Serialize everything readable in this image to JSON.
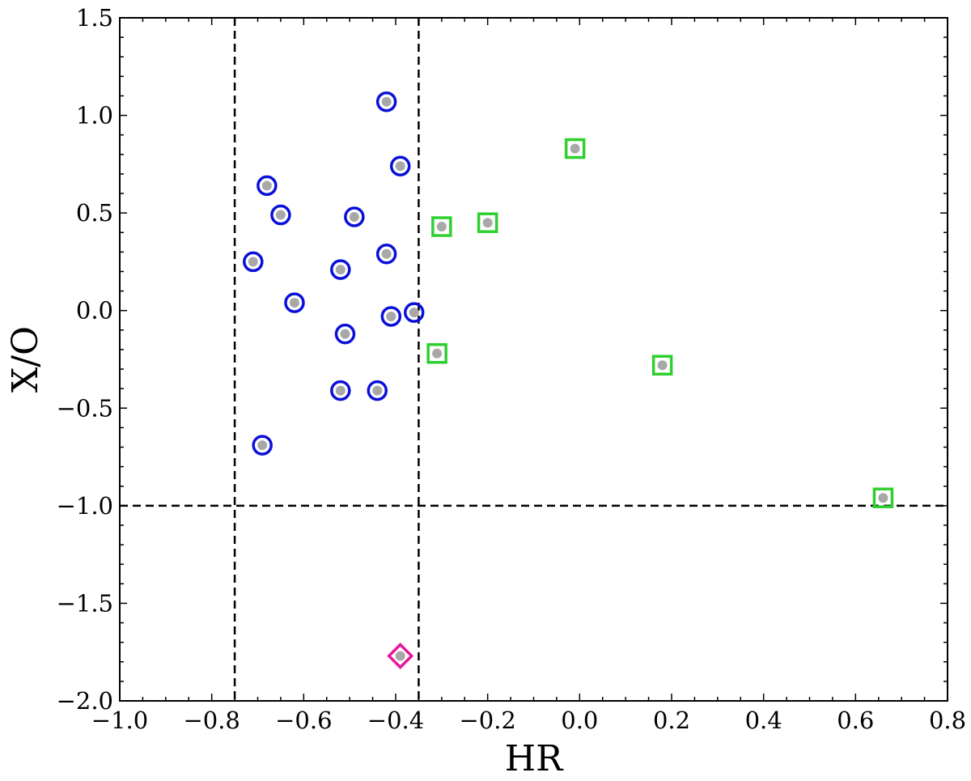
{
  "chart_data": {
    "type": "scatter",
    "title": "",
    "xlabel": "HR",
    "ylabel": "X/O",
    "xlim": [
      -1.0,
      0.8
    ],
    "ylim": [
      -2.0,
      1.5
    ],
    "xticks": [
      -1.0,
      -0.8,
      -0.6,
      -0.4,
      -0.2,
      0.0,
      0.2,
      0.4,
      0.6,
      0.8
    ],
    "yticks": [
      -2.0,
      -1.5,
      -1.0,
      -0.5,
      0.0,
      0.5,
      1.0,
      1.5
    ],
    "xtick_labels": [
      "−1.0",
      "−0.8",
      "−0.6",
      "−0.4",
      "−0.2",
      "0.0",
      "0.2",
      "0.4",
      "0.6",
      "0.8"
    ],
    "ytick_labels": [
      "−2.0",
      "−1.5",
      "−1.0",
      "−0.5",
      "0.0",
      "0.5",
      "1.0",
      "1.5"
    ],
    "grid": false,
    "reference_lines": [
      {
        "orientation": "vertical",
        "value": -0.75,
        "style": "dashed"
      },
      {
        "orientation": "vertical",
        "value": -0.35,
        "style": "dashed"
      },
      {
        "orientation": "horizontal",
        "value": -1.0,
        "style": "dashed"
      }
    ],
    "series": [
      {
        "marker": "circle",
        "color": "#0a10d8",
        "points": [
          {
            "x": -0.42,
            "y": 1.07
          },
          {
            "x": -0.39,
            "y": 0.74
          },
          {
            "x": -0.68,
            "y": 0.64
          },
          {
            "x": -0.65,
            "y": 0.49
          },
          {
            "x": -0.49,
            "y": 0.48
          },
          {
            "x": -0.42,
            "y": 0.29
          },
          {
            "x": -0.71,
            "y": 0.25
          },
          {
            "x": -0.52,
            "y": 0.21
          },
          {
            "x": -0.62,
            "y": 0.04
          },
          {
            "x": -0.36,
            "y": -0.01
          },
          {
            "x": -0.41,
            "y": -0.03
          },
          {
            "x": -0.51,
            "y": -0.12
          },
          {
            "x": -0.52,
            "y": -0.41
          },
          {
            "x": -0.44,
            "y": -0.41
          },
          {
            "x": -0.69,
            "y": -0.69
          }
        ]
      },
      {
        "marker": "square",
        "color": "#2fcf2f",
        "points": [
          {
            "x": -0.01,
            "y": 0.83
          },
          {
            "x": -0.3,
            "y": 0.43
          },
          {
            "x": -0.2,
            "y": 0.45
          },
          {
            "x": -0.31,
            "y": -0.22
          },
          {
            "x": 0.18,
            "y": -0.28
          },
          {
            "x": 0.66,
            "y": -0.96
          }
        ]
      },
      {
        "marker": "diamond",
        "color": "#e8179a",
        "points": [
          {
            "x": -0.39,
            "y": -1.77
          }
        ]
      }
    ],
    "inner_marker_color": "#a8a8a8"
  }
}
